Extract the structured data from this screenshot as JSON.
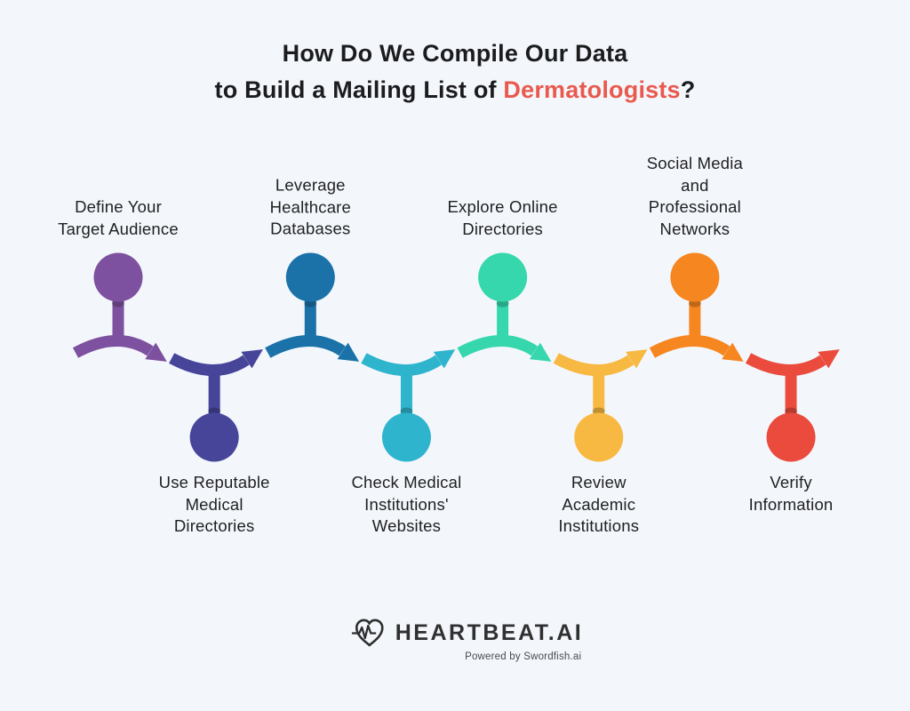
{
  "title": {
    "line1": "How Do We Compile Our Data",
    "line2_prefix": "to Build a Mailing List of ",
    "line2_highlight": "Dermatologists",
    "line2_suffix": "?"
  },
  "colors": {
    "background": "#f3f7fc",
    "title_text": "#1c1c1e",
    "highlight": "#e9594e",
    "label_text": "#212121",
    "logo_text": "#303030",
    "tagline_text": "#4a4a4a"
  },
  "steps": [
    {
      "label": "Define Your\nTarget Audience",
      "position": "top",
      "color": "#7d519f"
    },
    {
      "label": "Use Reputable\nMedical\nDirectories",
      "position": "bottom",
      "color": "#46459a"
    },
    {
      "label": "Leverage\nHealthcare\nDatabases",
      "position": "top",
      "color": "#1a72a8"
    },
    {
      "label": "Check Medical\nInstitutions'\nWebsites",
      "position": "bottom",
      "color": "#2fb4ce"
    },
    {
      "label": "Explore Online\nDirectories",
      "position": "top",
      "color": "#36d7ad"
    },
    {
      "label": "Review\nAcademic\nInstitutions",
      "position": "bottom",
      "color": "#f8b942"
    },
    {
      "label": "Social Media\nand\nProfessional\nNetworks",
      "position": "top",
      "color": "#f6861f"
    },
    {
      "label": "Verify\nInformation",
      "position": "bottom",
      "color": "#ea4b3d"
    }
  ],
  "footer": {
    "brand": "HEARTBEAT.AI",
    "tagline": "Powered by Swordfish.ai",
    "icon": "heart-pulse"
  }
}
